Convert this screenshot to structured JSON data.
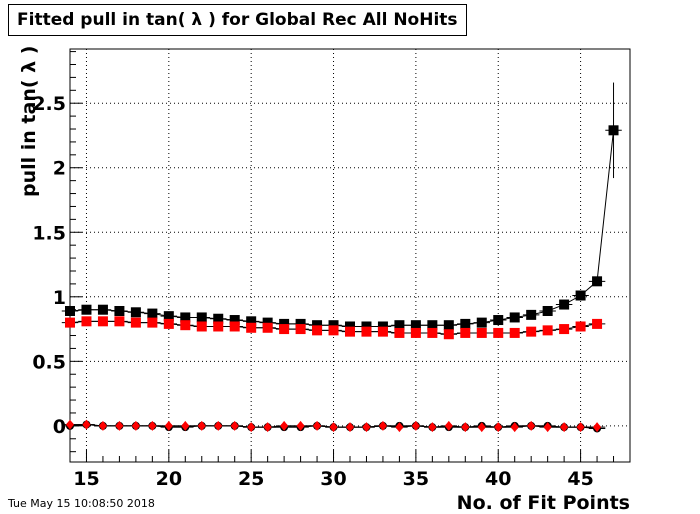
{
  "title": "Fitted pull in tan( λ ) for Global Rec All NoHits",
  "timestamp": "Tue May 15 10:08:50 2018",
  "chart_data": {
    "type": "scatter",
    "title": "Fitted pull in tan( λ ) for Global Rec All NoHits",
    "xlabel": "No. of Fit Points",
    "ylabel": "pull in tan( λ )",
    "xlim": [
      14,
      48
    ],
    "ylim": [
      -0.28,
      2.92
    ],
    "xticks": [
      15,
      20,
      25,
      30,
      35,
      40,
      45
    ],
    "yticks": [
      0,
      0.5,
      1,
      1.5,
      2,
      2.5
    ],
    "tick_labels_x": [
      "15",
      "20",
      "25",
      "30",
      "35",
      "40",
      "45"
    ],
    "tick_labels_y": [
      "0",
      "0.5",
      "1",
      "1.5",
      "2",
      "2.5"
    ],
    "grid": true,
    "series": [
      {
        "marker": "square",
        "color": "#000000",
        "connected": true,
        "x": [
          14,
          15,
          16,
          17,
          18,
          19,
          20,
          21,
          22,
          23,
          24,
          25,
          26,
          27,
          28,
          29,
          30,
          31,
          32,
          33,
          34,
          35,
          36,
          37,
          38,
          39,
          40,
          41,
          42,
          43,
          44,
          45,
          46,
          47
        ],
        "y": [
          0.89,
          0.9,
          0.9,
          0.89,
          0.88,
          0.87,
          0.85,
          0.84,
          0.84,
          0.83,
          0.82,
          0.81,
          0.8,
          0.79,
          0.79,
          0.78,
          0.78,
          0.77,
          0.77,
          0.77,
          0.78,
          0.78,
          0.78,
          0.78,
          0.79,
          0.8,
          0.82,
          0.84,
          0.86,
          0.89,
          0.94,
          1.01,
          1.12,
          2.29
        ],
        "yerr": [
          0.005,
          0.005,
          0.005,
          0.005,
          0.005,
          0.005,
          0.005,
          0.005,
          0.005,
          0.005,
          0.005,
          0.005,
          0.005,
          0.005,
          0.005,
          0.005,
          0.005,
          0.005,
          0.005,
          0.005,
          0.005,
          0.005,
          0.005,
          0.005,
          0.005,
          0.005,
          0.005,
          0.005,
          0.005,
          0.006,
          0.008,
          0.01,
          0.02,
          0.37
        ]
      },
      {
        "marker": "square",
        "color": "#ff0000",
        "connected": true,
        "x": [
          14,
          15,
          16,
          17,
          18,
          19,
          20,
          21,
          22,
          23,
          24,
          25,
          26,
          27,
          28,
          29,
          30,
          31,
          32,
          33,
          34,
          35,
          36,
          37,
          38,
          39,
          40,
          41,
          42,
          43,
          44,
          45,
          46
        ],
        "y": [
          0.8,
          0.81,
          0.81,
          0.81,
          0.8,
          0.8,
          0.79,
          0.78,
          0.77,
          0.77,
          0.77,
          0.76,
          0.76,
          0.75,
          0.75,
          0.74,
          0.74,
          0.73,
          0.73,
          0.73,
          0.72,
          0.72,
          0.72,
          0.71,
          0.72,
          0.72,
          0.72,
          0.72,
          0.73,
          0.74,
          0.75,
          0.77,
          0.79
        ]
      },
      {
        "marker": "circle",
        "color": "#000000",
        "connected": true,
        "x": [
          14,
          15,
          16,
          17,
          18,
          19,
          20,
          21,
          22,
          23,
          24,
          25,
          26,
          27,
          28,
          29,
          30,
          31,
          32,
          33,
          34,
          35,
          36,
          37,
          38,
          39,
          40,
          41,
          42,
          43,
          44,
          45,
          46
        ],
        "y": [
          0.0,
          0.01,
          0.0,
          0.0,
          0.0,
          0.0,
          -0.01,
          -0.01,
          0.0,
          0.0,
          0.0,
          -0.01,
          -0.01,
          -0.01,
          -0.01,
          0.0,
          -0.01,
          -0.01,
          -0.01,
          0.0,
          0.0,
          0.0,
          -0.01,
          -0.01,
          -0.01,
          0.0,
          -0.01,
          0.0,
          0.0,
          0.0,
          -0.01,
          -0.01,
          -0.02
        ]
      },
      {
        "marker": "diamond",
        "color": "#ff0000",
        "connected": true,
        "x": [
          14,
          15,
          16,
          17,
          18,
          19,
          20,
          21,
          22,
          23,
          24,
          25,
          26,
          27,
          28,
          29,
          30,
          31,
          32,
          33,
          34,
          35,
          36,
          37,
          38,
          39,
          40,
          41,
          42,
          43,
          44,
          45,
          46
        ],
        "y": [
          0.01,
          0.01,
          0.0,
          0.0,
          0.0,
          0.0,
          0.0,
          0.0,
          0.0,
          0.0,
          0.0,
          -0.01,
          -0.01,
          0.0,
          0.0,
          0.0,
          -0.01,
          -0.01,
          -0.01,
          0.0,
          -0.01,
          0.0,
          -0.01,
          0.0,
          -0.01,
          -0.01,
          -0.01,
          -0.01,
          0.0,
          -0.01,
          -0.01,
          -0.01,
          -0.01
        ]
      }
    ]
  }
}
